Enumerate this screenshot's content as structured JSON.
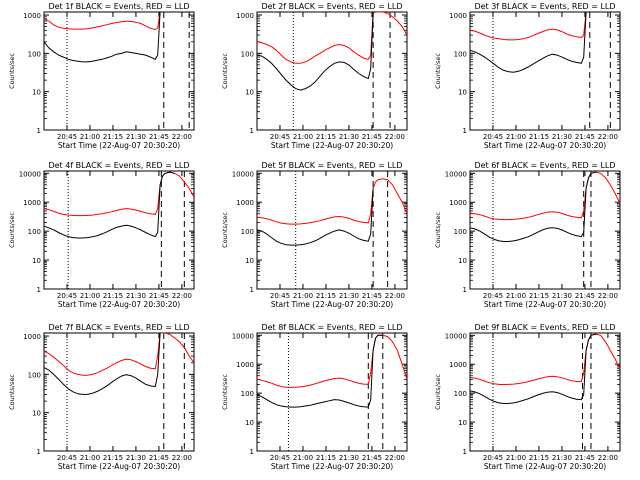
{
  "colors": {
    "events": "#000000",
    "lld": "#ff0000",
    "axis": "#000000",
    "background": "#ffffff"
  },
  "ylabel": "Counts/sec",
  "xlabel": "Start Time (22-Aug-07 20:30:20)",
  "ytick_labels": [
    "1",
    "10",
    "100",
    "1000",
    "10000"
  ],
  "xtick_labels": [
    "20:45",
    "21:00",
    "21:15",
    "21:30",
    "21:45",
    "22:00"
  ],
  "chart_data": [
    {
      "type": "line",
      "title": "Det 1f BLACK = Events, RED = LLD",
      "yscale": "log",
      "xlim": [
        0,
        62
      ],
      "ylim": [
        1,
        1200
      ],
      "x": [
        0,
        2,
        4,
        6,
        8,
        10,
        12,
        14,
        16,
        18,
        20,
        22,
        24,
        26,
        28,
        30,
        32,
        34,
        36,
        38,
        40,
        42,
        44,
        46,
        47,
        48,
        49,
        50,
        52,
        54,
        56,
        58,
        60,
        62
      ],
      "series": [
        {
          "color_key": "lld",
          "values": [
            800,
            700,
            550,
            480,
            450,
            440,
            430,
            430,
            430,
            440,
            460,
            490,
            520,
            560,
            600,
            640,
            670,
            690,
            680,
            650,
            600,
            520,
            450,
            420,
            460,
            1200,
            null,
            null,
            null,
            null,
            null,
            null,
            null,
            null
          ]
        },
        {
          "color_key": "events",
          "values": [
            200,
            140,
            110,
            90,
            80,
            70,
            65,
            62,
            60,
            60,
            62,
            66,
            70,
            76,
            84,
            95,
            100,
            110,
            105,
            100,
            95,
            90,
            80,
            70,
            90,
            1200,
            null,
            null,
            null,
            null,
            null,
            null,
            null,
            null
          ]
        }
      ],
      "vlines_dotted": [
        9.5
      ],
      "vlines_dashed": [
        49.5,
        60
      ]
    },
    {
      "type": "line",
      "title": "Det 2f BLACK = Events, RED = LLD",
      "yscale": "log",
      "xlim": [
        0,
        62
      ],
      "ylim": [
        1,
        1200
      ],
      "x": [
        0,
        2,
        4,
        6,
        8,
        10,
        12,
        14,
        16,
        18,
        20,
        22,
        24,
        26,
        28,
        30,
        32,
        34,
        36,
        38,
        40,
        42,
        44,
        46,
        47,
        48,
        49,
        50,
        52,
        54,
        56,
        58,
        60,
        62
      ],
      "series": [
        {
          "color_key": "lld",
          "values": [
            200,
            190,
            170,
            150,
            120,
            90,
            70,
            60,
            55,
            55,
            60,
            70,
            85,
            100,
            120,
            140,
            160,
            170,
            160,
            140,
            110,
            90,
            75,
            70,
            90,
            1100,
            1200,
            1200,
            1200,
            1100,
            900,
            700,
            500,
            300
          ]
        },
        {
          "color_key": "events",
          "values": [
            90,
            85,
            70,
            55,
            40,
            28,
            20,
            15,
            12,
            11,
            12,
            14,
            18,
            25,
            35,
            45,
            55,
            60,
            58,
            50,
            38,
            30,
            25,
            22,
            40,
            1100,
            null,
            null,
            null,
            null,
            null,
            null,
            null,
            null
          ]
        }
      ],
      "vlines_dotted": [
        15
      ],
      "vlines_dashed": [
        48,
        55
      ]
    },
    {
      "type": "line",
      "title": "Det 3f BLACK = Events, RED = LLD",
      "yscale": "log",
      "xlim": [
        0,
        62
      ],
      "ylim": [
        1,
        1200
      ],
      "x": [
        0,
        2,
        4,
        6,
        8,
        10,
        12,
        14,
        16,
        18,
        20,
        22,
        24,
        26,
        28,
        30,
        32,
        34,
        36,
        38,
        40,
        42,
        44,
        46,
        47,
        48,
        49,
        50,
        52,
        54,
        56,
        58,
        60,
        62
      ],
      "series": [
        {
          "color_key": "lld",
          "values": [
            400,
            380,
            340,
            300,
            270,
            250,
            240,
            230,
            225,
            225,
            230,
            240,
            260,
            290,
            330,
            370,
            410,
            430,
            410,
            370,
            320,
            290,
            270,
            260,
            300,
            1200,
            null,
            null,
            null,
            null,
            null,
            null,
            null,
            null
          ]
        },
        {
          "color_key": "events",
          "values": [
            120,
            110,
            95,
            80,
            65,
            52,
            42,
            36,
            33,
            32,
            34,
            38,
            44,
            52,
            62,
            74,
            86,
            95,
            90,
            80,
            70,
            62,
            58,
            55,
            80,
            1200,
            null,
            null,
            null,
            null,
            null,
            null,
            null,
            null
          ]
        }
      ],
      "vlines_dotted": [
        9.5
      ],
      "vlines_dashed": [
        49.5,
        58
      ]
    },
    {
      "type": "line",
      "title": "Det 4f BLACK = Events, RED = LLD",
      "yscale": "log",
      "xlim": [
        0,
        62
      ],
      "ylim": [
        1,
        12000
      ],
      "x": [
        0,
        2,
        4,
        6,
        8,
        10,
        12,
        14,
        16,
        18,
        20,
        22,
        24,
        26,
        28,
        30,
        32,
        34,
        36,
        38,
        40,
        42,
        44,
        46,
        47,
        48,
        49,
        50,
        52,
        54,
        56,
        58,
        60,
        62
      ],
      "series": [
        {
          "color_key": "lld",
          "values": [
            600,
            550,
            480,
            420,
            380,
            360,
            350,
            345,
            345,
            350,
            360,
            380,
            400,
            430,
            470,
            520,
            570,
            600,
            580,
            540,
            480,
            430,
            400,
            380,
            600,
            4000,
            8000,
            10000,
            11000,
            10000,
            8000,
            5000,
            3000,
            1500
          ]
        },
        {
          "color_key": "events",
          "values": [
            150,
            130,
            110,
            90,
            75,
            65,
            60,
            58,
            58,
            60,
            64,
            70,
            80,
            95,
            115,
            135,
            150,
            160,
            150,
            130,
            110,
            90,
            75,
            65,
            90,
            4000,
            8000,
            10000,
            11000,
            10000,
            null,
            null,
            null,
            null
          ]
        }
      ],
      "vlines_dotted": [
        10
      ],
      "vlines_dashed": [
        48.5,
        58
      ]
    },
    {
      "type": "line",
      "title": "Det 5f BLACK = Events, RED = LLD",
      "yscale": "log",
      "xlim": [
        0,
        62
      ],
      "ylim": [
        1,
        12000
      ],
      "x": [
        0,
        2,
        4,
        6,
        8,
        10,
        12,
        14,
        16,
        18,
        20,
        22,
        24,
        26,
        28,
        30,
        32,
        34,
        36,
        38,
        40,
        42,
        44,
        46,
        47,
        48,
        49,
        50,
        52,
        54,
        56,
        58,
        60,
        62
      ],
      "series": [
        {
          "color_key": "lld",
          "values": [
            300,
            290,
            270,
            240,
            210,
            190,
            180,
            175,
            175,
            178,
            185,
            195,
            210,
            230,
            255,
            285,
            310,
            320,
            305,
            275,
            240,
            215,
            200,
            195,
            400,
            3000,
            5000,
            6000,
            6500,
            6000,
            4000,
            2000,
            1000,
            400
          ]
        },
        {
          "color_key": "events",
          "values": [
            110,
            100,
            80,
            60,
            45,
            38,
            34,
            33,
            33,
            34,
            36,
            40,
            46,
            56,
            70,
            85,
            100,
            110,
            100,
            85,
            68,
            55,
            48,
            45,
            80,
            3000,
            null,
            null,
            null,
            null,
            null,
            null,
            null,
            null
          ]
        }
      ],
      "vlines_dotted": [
        16
      ],
      "vlines_dashed": [
        48,
        54
      ]
    },
    {
      "type": "line",
      "title": "Det 6f BLACK = Events, RED = LLD",
      "yscale": "log",
      "xlim": [
        0,
        62
      ],
      "ylim": [
        1,
        12000
      ],
      "x": [
        0,
        2,
        4,
        6,
        8,
        10,
        12,
        14,
        16,
        18,
        20,
        22,
        24,
        26,
        28,
        30,
        32,
        34,
        36,
        38,
        40,
        42,
        44,
        46,
        47,
        48,
        49,
        50,
        52,
        54,
        56,
        58,
        60,
        62
      ],
      "series": [
        {
          "color_key": "lld",
          "values": [
            420,
            400,
            370,
            330,
            290,
            265,
            255,
            250,
            250,
            255,
            265,
            280,
            300,
            330,
            370,
            410,
            450,
            470,
            450,
            410,
            360,
            320,
            300,
            290,
            500,
            3000,
            7000,
            10000,
            11000,
            10000,
            7000,
            4000,
            2000,
            900
          ]
        },
        {
          "color_key": "events",
          "values": [
            130,
            120,
            100,
            80,
            62,
            52,
            46,
            44,
            44,
            46,
            50,
            56,
            64,
            76,
            92,
            110,
            125,
            132,
            125,
            110,
            92,
            78,
            70,
            65,
            90,
            3000,
            7000,
            10000,
            11000,
            null,
            null,
            null,
            null,
            null
          ]
        }
      ],
      "vlines_dotted": [
        9.5
      ],
      "vlines_dashed": [
        47,
        50
      ]
    },
    {
      "type": "line",
      "title": "Det 7f BLACK = Events, RED = LLD",
      "yscale": "log",
      "xlim": [
        0,
        62
      ],
      "ylim": [
        1,
        1200
      ],
      "x": [
        0,
        2,
        4,
        6,
        8,
        10,
        12,
        14,
        16,
        18,
        20,
        22,
        24,
        26,
        28,
        30,
        32,
        34,
        36,
        38,
        40,
        42,
        44,
        46,
        47,
        48,
        49,
        50,
        52,
        54,
        56,
        58,
        60,
        62
      ],
      "series": [
        {
          "color_key": "lld",
          "values": [
            400,
            350,
            280,
            220,
            170,
            130,
            110,
            100,
            95,
            95,
            100,
            110,
            125,
            145,
            170,
            200,
            230,
            250,
            240,
            215,
            185,
            160,
            145,
            140,
            300,
            1200,
            1200,
            1200,
            1100,
            900,
            700,
            500,
            300,
            200
          ]
        },
        {
          "color_key": "events",
          "values": [
            150,
            130,
            100,
            75,
            55,
            42,
            35,
            31,
            30,
            30,
            32,
            36,
            42,
            50,
            62,
            76,
            90,
            98,
            92,
            80,
            66,
            55,
            50,
            48,
            100,
            1200,
            null,
            null,
            null,
            null,
            null,
            null,
            null,
            null
          ]
        }
      ],
      "vlines_dotted": [
        9.5
      ],
      "vlines_dashed": [
        49.5,
        58
      ]
    },
    {
      "type": "line",
      "title": "Det 8f BLACK = Events, RED = LLD",
      "yscale": "log",
      "xlim": [
        0,
        62
      ],
      "ylim": [
        1,
        12000
      ],
      "x": [
        0,
        2,
        4,
        6,
        8,
        10,
        12,
        14,
        16,
        18,
        20,
        22,
        24,
        26,
        28,
        30,
        32,
        34,
        36,
        38,
        40,
        42,
        44,
        46,
        47,
        48,
        49,
        50,
        52,
        54,
        56,
        58,
        60,
        62
      ],
      "series": [
        {
          "color_key": "lld",
          "values": [
            300,
            280,
            250,
            220,
            190,
            170,
            160,
            158,
            160,
            165,
            175,
            190,
            210,
            235,
            265,
            295,
            320,
            330,
            310,
            280,
            245,
            220,
            205,
            200,
            500,
            3000,
            8000,
            10000,
            10000,
            9000,
            6000,
            3000,
            1000,
            300
          ]
        },
        {
          "color_key": "events",
          "values": [
            90,
            75,
            60,
            48,
            40,
            36,
            34,
            33,
            33,
            34,
            36,
            38,
            42,
            46,
            50,
            55,
            60,
            58,
            52,
            46,
            40,
            36,
            34,
            33,
            60,
            3000,
            8000,
            10000,
            10000,
            null,
            null,
            null,
            null,
            null
          ]
        }
      ],
      "vlines_dotted": [
        13
      ],
      "vlines_dashed": [
        46,
        52
      ]
    },
    {
      "type": "line",
      "title": "Det 9f BLACK = Events, RED = LLD",
      "yscale": "log",
      "xlim": [
        0,
        62
      ],
      "ylim": [
        1,
        12000
      ],
      "x": [
        0,
        2,
        4,
        6,
        8,
        10,
        12,
        14,
        16,
        18,
        20,
        22,
        24,
        26,
        28,
        30,
        32,
        34,
        36,
        38,
        40,
        42,
        44,
        46,
        47,
        48,
        49,
        50,
        52,
        54,
        56,
        58,
        60,
        62
      ],
      "series": [
        {
          "color_key": "lld",
          "values": [
            350,
            330,
            300,
            260,
            230,
            210,
            200,
            198,
            200,
            205,
            215,
            230,
            250,
            275,
            305,
            340,
            370,
            385,
            370,
            340,
            300,
            270,
            255,
            250,
            500,
            3000,
            7000,
            10000,
            11000,
            10000,
            6000,
            3000,
            1500,
            700
          ]
        },
        {
          "color_key": "events",
          "values": [
            120,
            110,
            95,
            78,
            62,
            52,
            46,
            44,
            44,
            46,
            50,
            56,
            64,
            74,
            86,
            98,
            108,
            112,
            105,
            92,
            78,
            68,
            62,
            60,
            90,
            3000,
            7000,
            10000,
            11000,
            null,
            null,
            null,
            null,
            null
          ]
        }
      ],
      "vlines_dotted": [
        9.5
      ],
      "vlines_dashed": [
        46.5,
        50
      ]
    }
  ]
}
